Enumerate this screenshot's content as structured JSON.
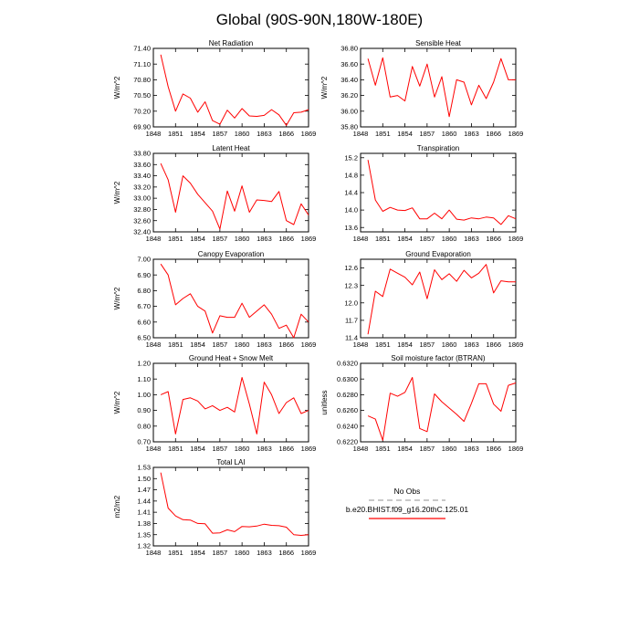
{
  "title": "Global (90S-90N,180W-180E)",
  "legend": {
    "obs_label": "No Obs",
    "obs_color": "#a8a8a8",
    "model_label": "b.e20.BHIST.f09_g16.20thC.125.01",
    "model_color": "#ff0000"
  },
  "chart_data": [
    {
      "type": "line",
      "title": "Net Radiation",
      "ylabel": "W/m^2",
      "xlim": [
        1848,
        1869
      ],
      "xticks": [
        "1848",
        "1851",
        "1854",
        "1857",
        "1860",
        "1863",
        "1866",
        "1869"
      ],
      "ylim": [
        69.9,
        71.4
      ],
      "yticks": [
        "69.90",
        "70.20",
        "70.50",
        "70.80",
        "71.10",
        "71.40"
      ],
      "grid": false,
      "series": [
        {
          "name": "b.e20.BHIST.f09_g16.20thC.125.01",
          "x": [
            1849,
            1850,
            1851,
            1852,
            1853,
            1854,
            1855,
            1856,
            1857,
            1858,
            1859,
            1860,
            1861,
            1862,
            1863,
            1864,
            1865,
            1866,
            1867,
            1868,
            1869
          ],
          "values": [
            71.28,
            70.67,
            70.2,
            70.53,
            70.45,
            70.18,
            70.38,
            70.02,
            69.95,
            70.22,
            70.07,
            70.25,
            70.11,
            70.1,
            70.12,
            70.23,
            70.13,
            69.93,
            70.17,
            70.18,
            70.23
          ]
        }
      ]
    },
    {
      "type": "line",
      "title": "Sensible Heat",
      "ylabel": "W/m^2",
      "xlim": [
        1848,
        1869
      ],
      "xticks": [
        "1848",
        "1851",
        "1854",
        "1857",
        "1860",
        "1863",
        "1866",
        "1869"
      ],
      "ylim": [
        35.8,
        36.8
      ],
      "yticks": [
        "35.80",
        "36.00",
        "36.20",
        "36.40",
        "36.60",
        "36.80"
      ],
      "grid": false,
      "series": [
        {
          "name": "b.e20.BHIST.f09_g16.20thC.125.01",
          "x": [
            1849,
            1850,
            1851,
            1852,
            1853,
            1854,
            1855,
            1856,
            1857,
            1858,
            1859,
            1860,
            1861,
            1862,
            1863,
            1864,
            1865,
            1866,
            1867,
            1868,
            1869
          ],
          "values": [
            36.67,
            36.33,
            36.68,
            36.18,
            36.2,
            36.13,
            36.57,
            36.32,
            36.6,
            36.18,
            36.44,
            35.93,
            36.4,
            36.37,
            36.08,
            36.33,
            36.16,
            36.37,
            36.67,
            36.4,
            36.4
          ]
        }
      ]
    },
    {
      "type": "line",
      "title": "Latent Heat",
      "ylabel": "W/m^2",
      "xlim": [
        1848,
        1869
      ],
      "xticks": [
        "1848",
        "1851",
        "1854",
        "1857",
        "1860",
        "1863",
        "1866",
        "1869"
      ],
      "ylim": [
        32.4,
        33.8
      ],
      "yticks": [
        "32.40",
        "32.60",
        "32.80",
        "33.00",
        "33.20",
        "33.40",
        "33.60",
        "33.80"
      ],
      "grid": false,
      "series": [
        {
          "name": "b.e20.BHIST.f09_g16.20thC.125.01",
          "x": [
            1849,
            1850,
            1851,
            1852,
            1853,
            1854,
            1855,
            1856,
            1857,
            1858,
            1859,
            1860,
            1861,
            1862,
            1863,
            1864,
            1865,
            1866,
            1867,
            1868,
            1869
          ],
          "values": [
            33.62,
            33.33,
            32.75,
            33.4,
            33.27,
            33.07,
            32.92,
            32.77,
            32.45,
            33.13,
            32.77,
            33.22,
            32.75,
            32.97,
            32.96,
            32.94,
            33.12,
            32.6,
            32.53,
            32.9,
            32.7
          ]
        }
      ]
    },
    {
      "type": "line",
      "title": "Transpiration",
      "ylabel": "",
      "xlim": [
        1848,
        1869
      ],
      "xticks": [
        "1848",
        "1851",
        "1854",
        "1857",
        "1860",
        "1863",
        "1866",
        "1869"
      ],
      "ylim": [
        13.5,
        15.3
      ],
      "yticks": [
        "13.6",
        "14.0",
        "14.4",
        "14.8",
        "15.2"
      ],
      "grid": false,
      "series": [
        {
          "name": "b.e20.BHIST.f09_g16.20thC.125.01",
          "x": [
            1849,
            1850,
            1851,
            1852,
            1853,
            1854,
            1855,
            1856,
            1857,
            1858,
            1859,
            1860,
            1861,
            1862,
            1863,
            1864,
            1865,
            1866,
            1867,
            1868,
            1869
          ],
          "values": [
            15.15,
            14.23,
            13.97,
            14.06,
            14.0,
            13.99,
            14.05,
            13.8,
            13.8,
            13.93,
            13.8,
            14.0,
            13.79,
            13.77,
            13.82,
            13.8,
            13.84,
            13.82,
            13.67,
            13.87,
            13.8
          ]
        }
      ]
    },
    {
      "type": "line",
      "title": "Canopy Evaporation",
      "ylabel": "W/m^2",
      "xlim": [
        1848,
        1869
      ],
      "xticks": [
        "1848",
        "1851",
        "1854",
        "1857",
        "1860",
        "1863",
        "1866",
        "1869"
      ],
      "ylim": [
        6.5,
        7.0
      ],
      "yticks": [
        "6.50",
        "6.60",
        "6.70",
        "6.80",
        "6.90",
        "7.00"
      ],
      "grid": false,
      "series": [
        {
          "name": "b.e20.BHIST.f09_g16.20thC.125.01",
          "x": [
            1849,
            1850,
            1851,
            1852,
            1853,
            1854,
            1855,
            1856,
            1857,
            1858,
            1859,
            1860,
            1861,
            1862,
            1863,
            1864,
            1865,
            1866,
            1867,
            1868,
            1869
          ],
          "values": [
            6.97,
            6.9,
            6.71,
            6.75,
            6.78,
            6.7,
            6.67,
            6.53,
            6.64,
            6.63,
            6.63,
            6.72,
            6.63,
            6.67,
            6.71,
            6.65,
            6.56,
            6.58,
            6.5,
            6.65,
            6.6
          ]
        }
      ]
    },
    {
      "type": "line",
      "title": "Ground Evaporation",
      "ylabel": "",
      "xlim": [
        1848,
        1869
      ],
      "xticks": [
        "1848",
        "1851",
        "1854",
        "1857",
        "1860",
        "1863",
        "1866",
        "1869"
      ],
      "ylim": [
        11.4,
        12.75
      ],
      "yticks": [
        "11.4",
        "11.7",
        "12.0",
        "12.3",
        "12.6"
      ],
      "grid": false,
      "series": [
        {
          "name": "b.e20.BHIST.f09_g16.20thC.125.01",
          "x": [
            1849,
            1850,
            1851,
            1852,
            1853,
            1854,
            1855,
            1856,
            1857,
            1858,
            1859,
            1860,
            1861,
            1862,
            1863,
            1864,
            1865,
            1866,
            1867,
            1868,
            1869
          ],
          "values": [
            11.46,
            12.2,
            12.11,
            12.58,
            12.51,
            12.44,
            12.31,
            12.53,
            12.07,
            12.57,
            12.4,
            12.5,
            12.37,
            12.56,
            12.43,
            12.51,
            12.66,
            12.17,
            12.38,
            12.36,
            12.36
          ]
        }
      ]
    },
    {
      "type": "line",
      "title": "Ground Heat + Snow Melt",
      "ylabel": "W/m^2",
      "xlim": [
        1848,
        1869
      ],
      "xticks": [
        "1848",
        "1851",
        "1854",
        "1857",
        "1860",
        "1863",
        "1866",
        "1869"
      ],
      "ylim": [
        0.7,
        1.2
      ],
      "yticks": [
        "0.70",
        "0.80",
        "0.90",
        "1.00",
        "1.10",
        "1.20"
      ],
      "grid": false,
      "series": [
        {
          "name": "b.e20.BHIST.f09_g16.20thC.125.01",
          "x": [
            1849,
            1850,
            1851,
            1852,
            1853,
            1854,
            1855,
            1856,
            1857,
            1858,
            1859,
            1860,
            1861,
            1862,
            1863,
            1864,
            1865,
            1866,
            1867,
            1868,
            1869
          ],
          "values": [
            1.0,
            1.02,
            0.75,
            0.97,
            0.98,
            0.96,
            0.91,
            0.93,
            0.9,
            0.92,
            0.89,
            1.11,
            0.94,
            0.75,
            1.08,
            1.0,
            0.88,
            0.95,
            0.98,
            0.88,
            0.9
          ]
        }
      ]
    },
    {
      "type": "line",
      "title": "Soil moisture factor (BTRAN)",
      "ylabel": "unitless",
      "xlim": [
        1848,
        1869
      ],
      "xticks": [
        "1848",
        "1851",
        "1854",
        "1857",
        "1860",
        "1863",
        "1866",
        "1869"
      ],
      "ylim": [
        0.622,
        0.632
      ],
      "yticks": [
        "0.6220",
        "0.6240",
        "0.6260",
        "0.6280",
        "0.6300",
        "0.6320"
      ],
      "grid": false,
      "series": [
        {
          "name": "b.e20.BHIST.f09_g16.20thC.125.01",
          "x": [
            1849,
            1850,
            1851,
            1852,
            1853,
            1854,
            1855,
            1856,
            1857,
            1858,
            1859,
            1860,
            1861,
            1862,
            1863,
            1864,
            1865,
            1866,
            1867,
            1868,
            1869
          ],
          "values": [
            0.6253,
            0.6249,
            0.6222,
            0.6282,
            0.6278,
            0.6283,
            0.6302,
            0.6237,
            0.6233,
            0.6281,
            0.6271,
            0.6263,
            0.6255,
            0.6246,
            0.6269,
            0.6294,
            0.6294,
            0.6268,
            0.6259,
            0.6292,
            0.6295
          ]
        }
      ]
    },
    {
      "type": "line",
      "title": "Total LAI",
      "ylabel": "m2/m2",
      "xlim": [
        1848,
        1869
      ],
      "xticks": [
        "1848",
        "1851",
        "1854",
        "1857",
        "1860",
        "1863",
        "1866",
        "1869"
      ],
      "ylim": [
        1.32,
        1.53
      ],
      "yticks": [
        "1.32",
        "1.35",
        "1.38",
        "1.41",
        "1.44",
        "1.47",
        "1.50",
        "1.53"
      ],
      "grid": false,
      "series": [
        {
          "name": "b.e20.BHIST.f09_g16.20thC.125.01",
          "x": [
            1849,
            1850,
            1851,
            1852,
            1853,
            1854,
            1855,
            1856,
            1857,
            1858,
            1859,
            1860,
            1861,
            1862,
            1863,
            1864,
            1865,
            1866,
            1867,
            1868,
            1869
          ],
          "values": [
            1.516,
            1.421,
            1.4,
            1.39,
            1.389,
            1.38,
            1.379,
            1.354,
            1.355,
            1.363,
            1.358,
            1.372,
            1.371,
            1.373,
            1.378,
            1.375,
            1.374,
            1.37,
            1.35,
            1.348,
            1.35
          ]
        }
      ]
    }
  ]
}
